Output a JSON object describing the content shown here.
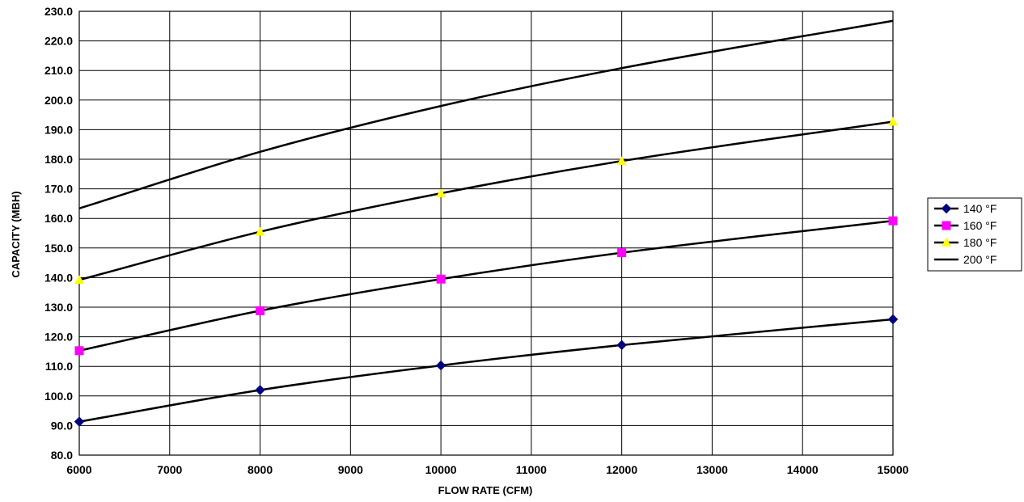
{
  "chart_data": {
    "type": "line",
    "title": "",
    "xlabel": "FLOW RATE (CFM)",
    "ylabel": "CAPACITY (MBH)",
    "xlim": [
      6000,
      15000
    ],
    "ylim": [
      80,
      230
    ],
    "x_ticks": [
      "6000",
      "7000",
      "8000",
      "9000",
      "10000",
      "11000",
      "12000",
      "13000",
      "14000",
      "15000"
    ],
    "y_ticks": [
      "80.0",
      "90.0",
      "100.0",
      "110.0",
      "120.0",
      "130.0",
      "140.0",
      "150.0",
      "160.0",
      "170.0",
      "180.0",
      "190.0",
      "200.0",
      "210.0",
      "220.0",
      "230.0"
    ],
    "grid": true,
    "legend_position": "right",
    "x": [
      6000,
      8000,
      10000,
      12000,
      15000
    ],
    "series": [
      {
        "name": "140 °F",
        "values": [
          91.3,
          102.0,
          110.3,
          117.2,
          125.9
        ],
        "marker": "diamond",
        "marker_color": "#000080",
        "line_color": "#000000"
      },
      {
        "name": "160 °F",
        "values": [
          115.3,
          128.8,
          139.5,
          148.4,
          159.2
        ],
        "marker": "square",
        "marker_color": "#FF00FF",
        "line_color": "#000000"
      },
      {
        "name": "180 °F",
        "values": [
          139.2,
          155.5,
          168.5,
          179.4,
          192.7
        ],
        "marker": "triangle",
        "marker_color": "#FFFF00",
        "line_color": "#000000"
      },
      {
        "name": "200 °F",
        "values": [
          163.4,
          182.5,
          198.0,
          210.8,
          226.8
        ],
        "marker": "none",
        "marker_color": "#000000",
        "line_color": "#000000"
      }
    ]
  }
}
